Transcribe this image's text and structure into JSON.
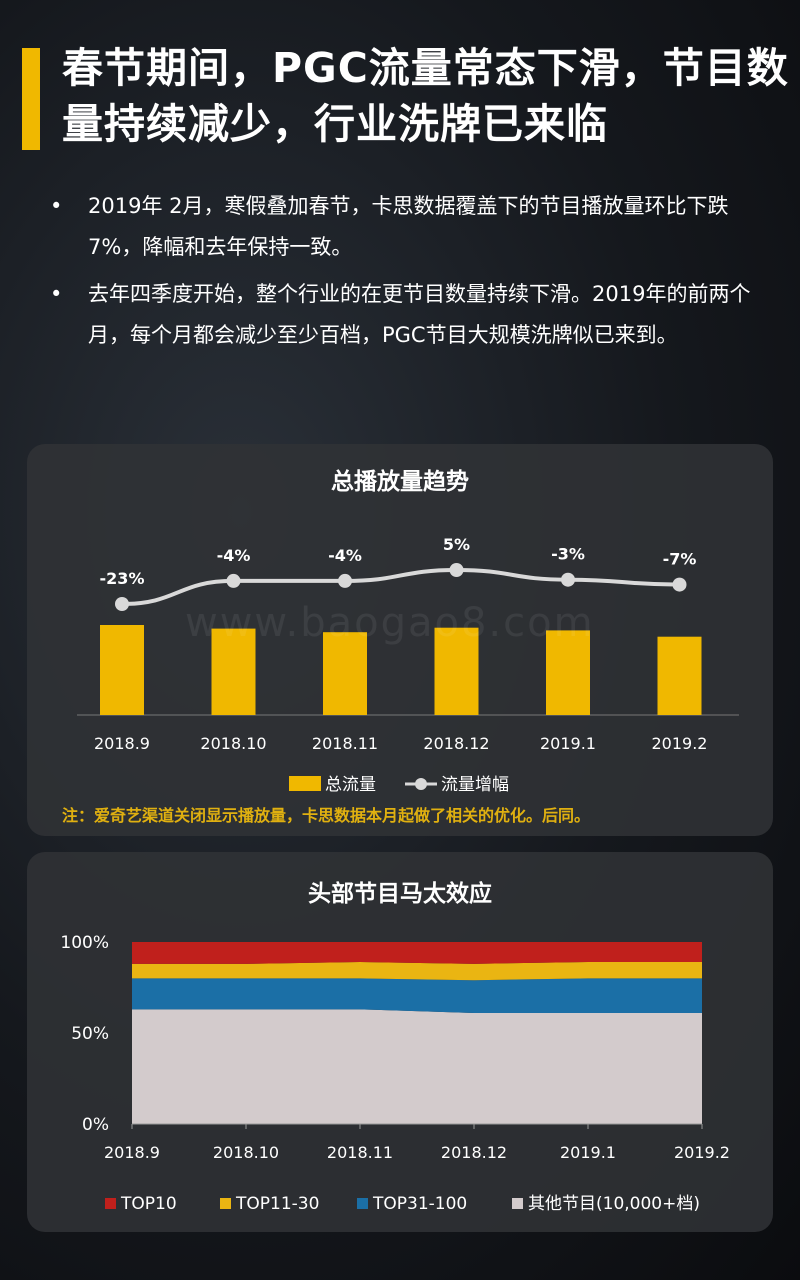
{
  "header": {
    "title": "春节期间，PGC流量常态下滑，节目数量持续减少，行业洗牌已来临"
  },
  "bullets": [
    "2019年 2月，寒假叠加春节，卡思数据覆盖下的节目播放量环比下跌 7%，降幅和去年保持一致。",
    "去年四季度开始，整个行业的在更节目数量持续下滑。2019年的前两个月，每个月都会减少至少百档，PGC节目大规模洗牌似已来到。"
  ],
  "watermark": "www.baogao8.com",
  "colors": {
    "accent": "#f0b800",
    "line": "#d9d9d9",
    "top10": "#c0201c",
    "top11_30": "#eab512",
    "top31_100": "#1b6fa6",
    "other": "#d3cbcc"
  },
  "chart_data": [
    {
      "type": "bar",
      "title": "总播放量趋势",
      "categories": [
        "2018.9",
        "2018.10",
        "2018.11",
        "2018.12",
        "2019.1",
        "2019.2"
      ],
      "series": [
        {
          "name": "总流量",
          "type": "bar",
          "values": [
            100,
            96,
            92,
            97,
            94,
            87
          ]
        },
        {
          "name": "流量增幅",
          "type": "line",
          "values": [
            -23,
            -4,
            -4,
            5,
            -3,
            -7
          ],
          "labels": [
            "-23%",
            "-4%",
            "-4%",
            "5%",
            "-3%",
            "-7%"
          ]
        }
      ],
      "legend": "bottom",
      "note": "注：爱奇艺渠道关闭显示播放量，卡思数据本月起做了相关的优化。后同。"
    },
    {
      "type": "area",
      "title": "头部节目马太效应",
      "categories": [
        "2018.9",
        "2018.10",
        "2018.11",
        "2018.12",
        "2019.1",
        "2019.2"
      ],
      "y_ticks": [
        "100%",
        "50%",
        "0%"
      ],
      "ylim": [
        0,
        100
      ],
      "series": [
        {
          "name": "其他节目(10,000+档)",
          "values": [
            63,
            63,
            63,
            61,
            61,
            61
          ]
        },
        {
          "name": "TOP31-100",
          "values": [
            17,
            17,
            17,
            18,
            19,
            19
          ]
        },
        {
          "name": "TOP11-30",
          "values": [
            8,
            8,
            9,
            9,
            9,
            9
          ]
        },
        {
          "name": "TOP10",
          "values": [
            12,
            12,
            11,
            12,
            11,
            11
          ]
        }
      ],
      "legend": "bottom"
    }
  ]
}
